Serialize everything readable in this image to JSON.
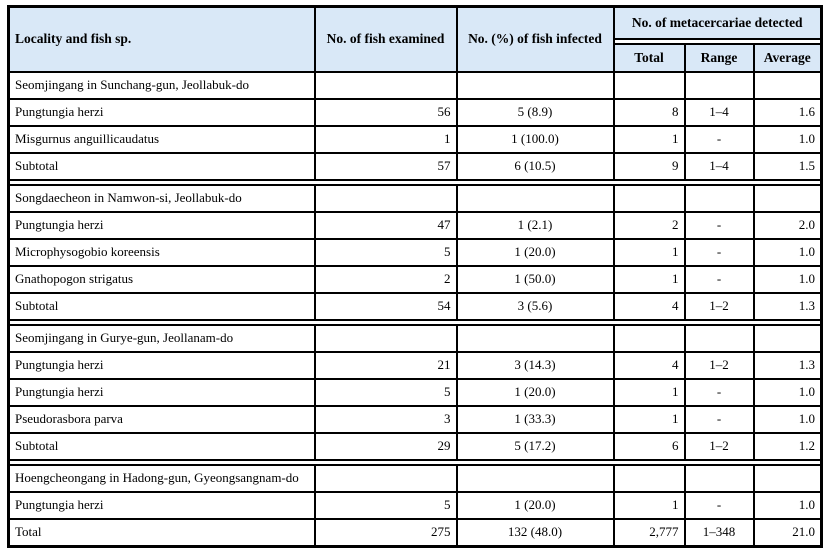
{
  "colors": {
    "header_bg": "#d9e8f7",
    "border_color": "#000000"
  },
  "table": {
    "headers": {
      "locality": "Locality and fish sp.",
      "examined": "No. of fish examined",
      "infected": "No. (%) of fish infected",
      "metacercariae": "No. of metacercariae detected",
      "total": "Total",
      "range": "Range",
      "average": "Average"
    },
    "sections": [
      {
        "locality": "Seomjingang in Sunchang-gun, Jeollabuk-do",
        "rows": [
          {
            "name": "Pungtungia herzi",
            "examined": "56",
            "infected": "5 (8.9)",
            "total": "8",
            "range": "1–4",
            "average": "1.6"
          },
          {
            "name": "Misgurnus anguillicaudatus",
            "examined": "1",
            "infected": "1 (100.0)",
            "total": "1",
            "range": "-",
            "average": "1.0"
          },
          {
            "name": "Subtotal",
            "examined": "57",
            "infected": "6 (10.5)",
            "total": "9",
            "range": "1–4",
            "average": "1.5"
          }
        ]
      },
      {
        "locality": "Songdaecheon in Namwon-si, Jeollabuk-do",
        "rows": [
          {
            "name": "Pungtungia herzi",
            "examined": "47",
            "infected": "1 (2.1)",
            "total": "2",
            "range": "-",
            "average": "2.0"
          },
          {
            "name": "Microphysogobio koreensis",
            "examined": "5",
            "infected": "1 (20.0)",
            "total": "1",
            "range": "-",
            "average": "1.0"
          },
          {
            "name": "Gnathopogon strigatus",
            "examined": "2",
            "infected": "1 (50.0)",
            "total": "1",
            "range": "-",
            "average": "1.0"
          },
          {
            "name": "Subtotal",
            "examined": "54",
            "infected": "3 (5.6)",
            "total": "4",
            "range": "1–2",
            "average": "1.3"
          }
        ]
      },
      {
        "locality": "Seomjingang in Gurye-gun, Jeollanam-do",
        "rows": [
          {
            "name": "Pungtungia herzi",
            "examined": "21",
            "infected": "3 (14.3)",
            "total": "4",
            "range": "1–2",
            "average": "1.3"
          },
          {
            "name": "Pungtungia herzi",
            "examined": "5",
            "infected": "1 (20.0)",
            "total": "1",
            "range": "-",
            "average": "1.0"
          },
          {
            "name": "Pseudorasbora parva",
            "examined": "3",
            "infected": "1 (33.3)",
            "total": "1",
            "range": "-",
            "average": "1.0"
          },
          {
            "name": "Subtotal",
            "examined": "29",
            "infected": "5 (17.2)",
            "total": "6",
            "range": "1–2",
            "average": "1.2"
          }
        ]
      },
      {
        "locality": "Hoengcheongang in Hadong-gun, Gyeongsangnam-do",
        "rows": [
          {
            "name": "Pungtungia herzi",
            "examined": "5",
            "infected": "1 (20.0)",
            "total": "1",
            "range": "-",
            "average": "1.0"
          },
          {
            "name": "Total",
            "examined": "275",
            "infected": "132 (48.0)",
            "total": "2,777",
            "range": "1–348",
            "average": "21.0"
          }
        ]
      }
    ]
  }
}
